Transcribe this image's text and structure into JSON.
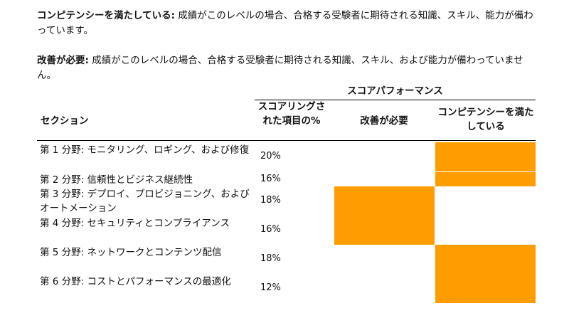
{
  "definitions": {
    "competent_term": "コンピテンシーを満たしている:",
    "competent_desc": " 成績がこのレベルの場合、合格する受験者に期待される知識、スキル、能力が備わっています。",
    "improve_term": "改善が必要:",
    "improve_desc": " 成績がこのレベルの場合、合格する受験者に期待される知識、スキル、および能力が備わっていません。"
  },
  "table": {
    "group_header": "スコアパフォーマンス",
    "col_section": "セクション",
    "col_pct": "スコアリングされた項目の%",
    "col_improve": "改善が必要",
    "col_competent": "コンピテンシーを満たしている",
    "rows": [
      {
        "section": "第 1 分野: モニタリング、ロギング、および修復",
        "pct": "20%",
        "status": "competent"
      },
      {
        "section": "第 2 分野: 信頼性とビジネス継続性",
        "pct": "16%",
        "status": "competent"
      },
      {
        "section": "第 3 分野: デプロイ、プロビジョニング、およびオートメーション",
        "pct": "18%",
        "status": "improve"
      },
      {
        "section": "第 4 分野: セキュリティとコンプライアンス",
        "pct": "16%",
        "status": "improve"
      },
      {
        "section": "第 5 分野: ネットワークとコンテンツ配信",
        "pct": "18%",
        "status": "competent"
      },
      {
        "section": "第 6 分野: コストとパフォーマンスの最適化",
        "pct": "12%",
        "status": "competent"
      }
    ]
  },
  "colors": {
    "bar": "#ff9d00"
  }
}
